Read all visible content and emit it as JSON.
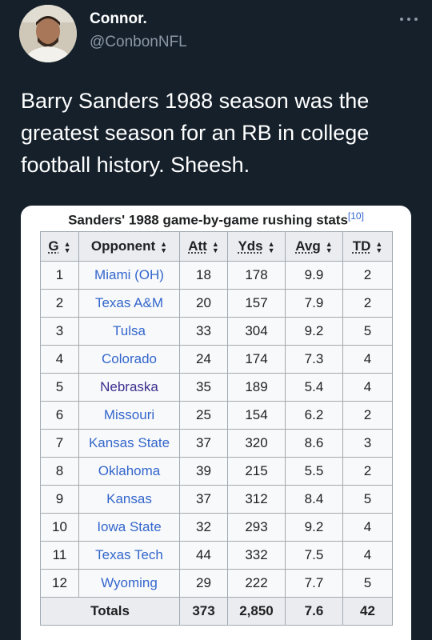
{
  "tweet": {
    "display_name": "Connor.",
    "handle": "@ConbonNFL",
    "more_icon": "more-horizontal-icon",
    "text": "Barry Sanders 1988 season was the greatest season for an RB in college football history. Sheesh."
  },
  "image": {
    "caption": "Sanders' 1988 game-by-game rushing stats",
    "ref_mark": "[10]",
    "columns": [
      "G",
      "Opponent",
      "Att",
      "Yds",
      "Avg",
      "TD"
    ],
    "rows": [
      [
        "1",
        "Miami (OH)",
        "18",
        "178",
        "9.9",
        "2"
      ],
      [
        "2",
        "Texas A&M",
        "20",
        "157",
        "7.9",
        "2"
      ],
      [
        "3",
        "Tulsa",
        "33",
        "304",
        "9.2",
        "5"
      ],
      [
        "4",
        "Colorado",
        "24",
        "174",
        "7.3",
        "4"
      ],
      [
        "5",
        "Nebraska",
        "35",
        "189",
        "5.4",
        "4"
      ],
      [
        "6",
        "Missouri",
        "25",
        "154",
        "6.2",
        "2"
      ],
      [
        "7",
        "Kansas State",
        "37",
        "320",
        "8.6",
        "3"
      ],
      [
        "8",
        "Oklahoma",
        "39",
        "215",
        "5.5",
        "2"
      ],
      [
        "9",
        "Kansas",
        "37",
        "312",
        "8.4",
        "5"
      ],
      [
        "10",
        "Iowa State",
        "32",
        "293",
        "9.2",
        "4"
      ],
      [
        "11",
        "Texas Tech",
        "44",
        "332",
        "7.5",
        "4"
      ],
      [
        "12",
        "Wyoming",
        "29",
        "222",
        "7.7",
        "5"
      ]
    ],
    "visited_rows": [
      4
    ],
    "totals": {
      "label": "Totals",
      "att": "373",
      "yds": "2,850",
      "avg": "7.6",
      "td": "42"
    },
    "link_color": "#3366cc",
    "visited_link_color": "#3a2f8e"
  },
  "colors": {
    "background": "#15202b",
    "secondary_text": "#8b98a5",
    "table_header": "#eaecf0",
    "table_cell": "#f8f9fa"
  }
}
